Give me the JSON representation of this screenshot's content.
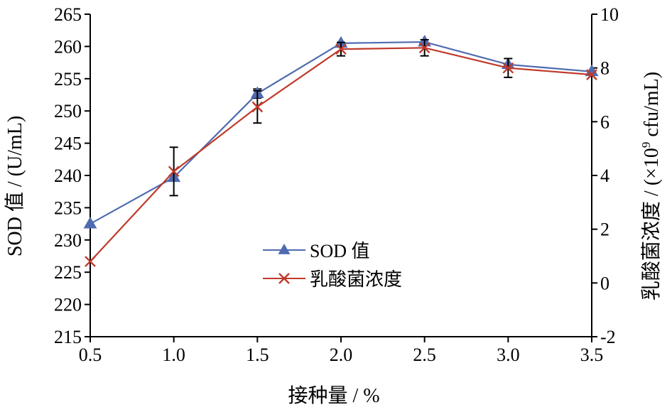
{
  "chart_data": {
    "type": "line",
    "title": "",
    "xlabel": "接种量 / %",
    "ylabel_left": "SOD 值 / (U/mL)",
    "ylabel_right_prefix": "乳酸菌浓度 / (×10",
    "ylabel_right_exp": "9",
    "ylabel_right_suffix": " cfu/mL)",
    "x": [
      0.5,
      1.0,
      1.5,
      2.0,
      2.5,
      3.0,
      3.5
    ],
    "x_tick_labels": [
      "0.5",
      "1.0",
      "1.5",
      "2.0",
      "2.5",
      "3.0",
      "3.5"
    ],
    "xlim": [
      0.5,
      3.5
    ],
    "ylim_left": [
      215,
      265
    ],
    "y_left_ticks": [
      215,
      220,
      225,
      230,
      235,
      240,
      245,
      250,
      255,
      260,
      265
    ],
    "ylim_right": [
      -2,
      10
    ],
    "y_right_ticks": [
      -2,
      0,
      2,
      4,
      6,
      8,
      10
    ],
    "legend_position": "center",
    "series": [
      {
        "name": "SOD 值",
        "axis": "left",
        "marker": "triangle",
        "color": "#4f6bb0",
        "values": [
          232.5,
          239.7,
          252.7,
          260.5,
          260.7,
          257.2,
          256.1
        ],
        "error": [
          0,
          0,
          0.7,
          0,
          0,
          0,
          0
        ]
      },
      {
        "name": "乳酸菌浓度",
        "axis": "right",
        "marker": "x",
        "color": "#c0392b",
        "values": [
          0.8,
          4.15,
          6.55,
          8.7,
          8.75,
          8.0,
          7.75
        ],
        "error": [
          0,
          0.9,
          0.6,
          0.25,
          0.3,
          0.35,
          0
        ]
      }
    ]
  }
}
